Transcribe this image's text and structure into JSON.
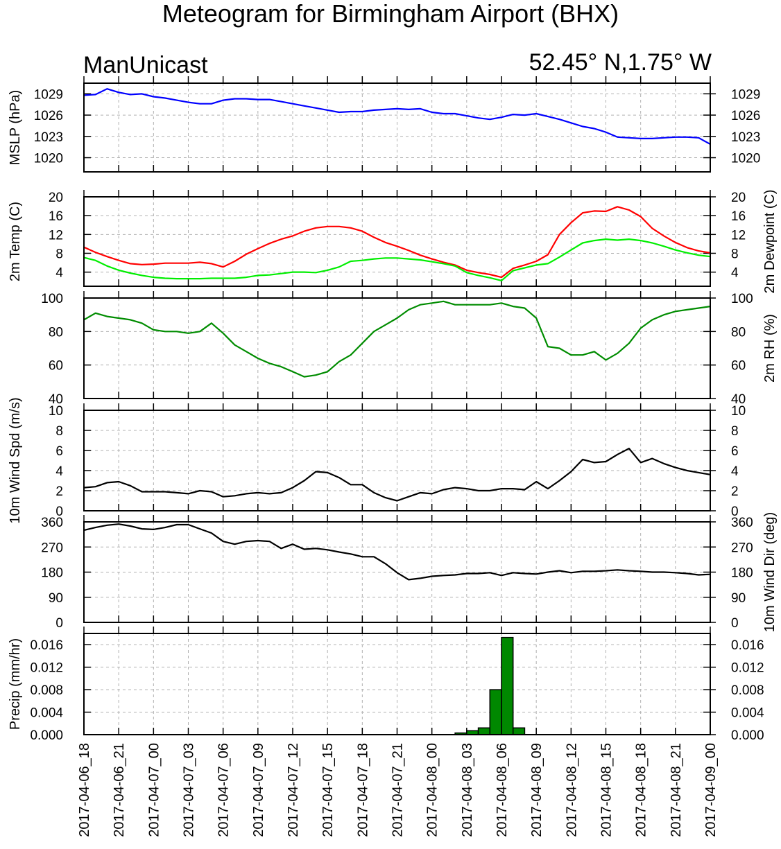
{
  "title": "Meteogram for Birmingham Airport (BHX)",
  "model": "ManUnicast",
  "location": "52.45° N,1.75° W",
  "colors": {
    "mslp": "#0000ff",
    "temp": "#ff0000",
    "dewpoint": "#00ee00",
    "rh": "#008c00",
    "wind": "#000000",
    "precip_bar": "#008800"
  },
  "chart_data": [
    {
      "type": "line",
      "panel": "mslp",
      "ylabel_left": "MSLP (hPa)",
      "ylabel_right": "",
      "ylim": [
        1018,
        1030.5
      ],
      "yticks": [
        1020,
        1023,
        1026,
        1029
      ],
      "series": [
        {
          "color": "#0000ff",
          "values": [
            1028.8,
            1028.9,
            1029.7,
            1029.2,
            1028.9,
            1029.0,
            1028.6,
            1028.4,
            1028.1,
            1027.8,
            1027.6,
            1027.6,
            1028.1,
            1028.3,
            1028.3,
            1028.2,
            1028.2,
            1027.9,
            1027.6,
            1027.3,
            1027.0,
            1026.7,
            1026.4,
            1026.5,
            1026.5,
            1026.7,
            1026.8,
            1026.9,
            1026.8,
            1026.9,
            1026.4,
            1026.2,
            1026.2,
            1025.9,
            1025.6,
            1025.4,
            1025.7,
            1026.1,
            1026.0,
            1026.2,
            1025.8,
            1025.4,
            1024.9,
            1024.4,
            1024.1,
            1023.6,
            1022.9,
            1022.8,
            1022.7,
            1022.7,
            1022.8,
            1022.9,
            1022.9,
            1022.8,
            1021.9
          ]
        }
      ]
    },
    {
      "type": "line",
      "panel": "temperature",
      "ylabel_left": "2m Temp (C)",
      "ylabel_right": "2m Dewpoint (C)",
      "ylim": [
        1,
        20
      ],
      "yticks": [
        4,
        8,
        12,
        16,
        20
      ],
      "series": [
        {
          "color": "#ff0000",
          "values": [
            9.3,
            8.2,
            7.3,
            6.5,
            5.8,
            5.6,
            5.7,
            5.9,
            5.9,
            5.9,
            6.1,
            5.8,
            5.1,
            6.3,
            7.8,
            9.0,
            10.1,
            11.0,
            11.7,
            12.7,
            13.4,
            13.7,
            13.7,
            13.4,
            12.7,
            11.4,
            10.3,
            9.5,
            8.6,
            7.6,
            6.8,
            6.1,
            5.5,
            4.4,
            3.9,
            3.5,
            2.9,
            4.8,
            5.5,
            6.3,
            7.7,
            12.0,
            14.5,
            16.6,
            17.0,
            16.9,
            17.9,
            17.2,
            15.8,
            13.3,
            11.7,
            10.3,
            9.2,
            8.5,
            8.1
          ]
        },
        {
          "color": "#00ee00",
          "values": [
            7.1,
            6.5,
            5.3,
            4.4,
            3.8,
            3.3,
            2.9,
            2.7,
            2.6,
            2.6,
            2.6,
            2.7,
            2.7,
            2.7,
            2.9,
            3.3,
            3.4,
            3.7,
            4.0,
            4.0,
            3.9,
            4.4,
            5.1,
            6.3,
            6.5,
            6.8,
            7.0,
            7.0,
            6.8,
            6.6,
            6.2,
            5.8,
            5.3,
            3.9,
            3.3,
            2.8,
            2.2,
            4.3,
            4.9,
            5.5,
            5.8,
            7.2,
            8.7,
            10.2,
            10.7,
            11.0,
            10.8,
            11.0,
            10.7,
            10.2,
            9.5,
            8.7,
            8.1,
            7.6,
            7.3
          ]
        }
      ]
    },
    {
      "type": "line",
      "panel": "rh",
      "ylabel_left": "",
      "ylabel_right": "2m RH (%)",
      "ylim": [
        40,
        100
      ],
      "yticks": [
        40,
        60,
        80,
        100
      ],
      "series": [
        {
          "color": "#008c00",
          "values": [
            87,
            91,
            89,
            88,
            87,
            85,
            81,
            80,
            80,
            79,
            80,
            85,
            79,
            72,
            68,
            64,
            61,
            59,
            56,
            53,
            54,
            56,
            62,
            66,
            73,
            80,
            84,
            88,
            93,
            96,
            97,
            98,
            96,
            96,
            96,
            96,
            97,
            95,
            94,
            88,
            71,
            70,
            66,
            66,
            68,
            63,
            67,
            73,
            82,
            87,
            90,
            92,
            93,
            94,
            95
          ]
        }
      ]
    },
    {
      "type": "line",
      "panel": "wind_speed",
      "ylabel_left": "10m Wind Spd (m/s)",
      "ylabel_right": "",
      "ylim": [
        0,
        10
      ],
      "yticks": [
        0,
        2,
        4,
        6,
        8,
        10
      ],
      "series": [
        {
          "color": "#000000",
          "values": [
            2.3,
            2.4,
            2.8,
            2.9,
            2.5,
            1.9,
            1.9,
            1.9,
            1.8,
            1.7,
            2.0,
            1.9,
            1.4,
            1.5,
            1.7,
            1.8,
            1.7,
            1.8,
            2.3,
            3.0,
            3.9,
            3.8,
            3.3,
            2.6,
            2.6,
            1.8,
            1.3,
            1.0,
            1.4,
            1.8,
            1.7,
            2.1,
            2.3,
            2.2,
            2.0,
            2.0,
            2.2,
            2.2,
            2.1,
            2.9,
            2.2,
            3.0,
            3.9,
            5.1,
            4.8,
            4.9,
            5.6,
            6.2,
            4.8,
            5.2,
            4.7,
            4.3,
            4.0,
            3.8,
            3.6
          ]
        }
      ]
    },
    {
      "type": "line",
      "panel": "wind_direction",
      "ylabel_left": "",
      "ylabel_right": "10m Wind Dir (deg)",
      "ylim": [
        0,
        360
      ],
      "yticks": [
        0,
        90,
        180,
        270,
        360
      ],
      "series": [
        {
          "color": "#000000",
          "values": [
            330,
            340,
            348,
            352,
            345,
            335,
            333,
            340,
            350,
            350,
            335,
            320,
            290,
            280,
            290,
            293,
            290,
            265,
            280,
            262,
            265,
            260,
            252,
            245,
            235,
            235,
            210,
            178,
            153,
            158,
            165,
            168,
            170,
            175,
            175,
            178,
            168,
            178,
            175,
            173,
            180,
            185,
            178,
            183,
            183,
            185,
            188,
            185,
            183,
            180,
            180,
            178,
            175,
            170,
            172
          ]
        }
      ]
    },
    {
      "type": "bar",
      "panel": "precip",
      "ylabel_left": "Precip (mm/hr)",
      "ylabel_right": "",
      "ylim": [
        0,
        0.018
      ],
      "yticks": [
        0.0,
        0.004,
        0.008,
        0.012,
        0.016
      ],
      "ytick_labels": [
        "0.000",
        "0.004",
        "0.008",
        "0.012",
        "0.016"
      ],
      "bars": [
        {
          "hour_index": 32,
          "value": 0.0003
        },
        {
          "hour_index": 33,
          "value": 0.0007
        },
        {
          "hour_index": 34,
          "value": 0.0012
        },
        {
          "hour_index": 35,
          "value": 0.008
        },
        {
          "hour_index": 36,
          "value": 0.0173
        },
        {
          "hour_index": 37,
          "value": 0.0012
        }
      ]
    }
  ],
  "x_axis": {
    "hours_total": 54,
    "ticks": [
      "2017-04-06_18",
      "2017-04-06_21",
      "2017-04-07_00",
      "2017-04-07_03",
      "2017-04-07_06",
      "2017-04-07_09",
      "2017-04-07_12",
      "2017-04-07_15",
      "2017-04-07_18",
      "2017-04-07_21",
      "2017-04-08_00",
      "2017-04-08_03",
      "2017-04-08_06",
      "2017-04-08_09",
      "2017-04-08_12",
      "2017-04-08_15",
      "2017-04-08_18",
      "2017-04-08_21",
      "2017-04-09_00"
    ]
  }
}
